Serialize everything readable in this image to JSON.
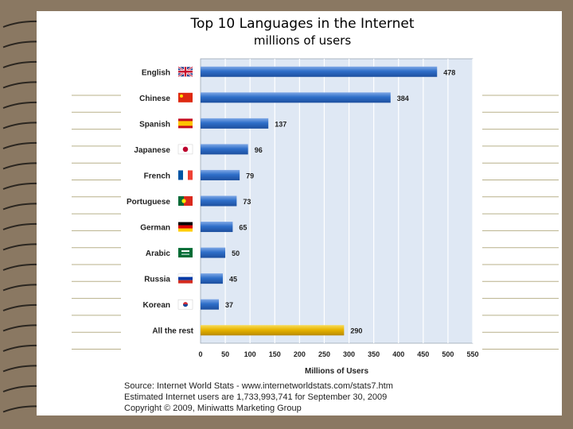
{
  "title": "Top 10 Languages in the Internet",
  "subtitle": "millions of users",
  "footer": {
    "source": "Source: Internet World Stats - www.internetworldstats.com/stats7.htm",
    "estimate": "Estimated Internet users are 1,733,993,741 for September 30, 2009",
    "copyright": "Copyright © 2009, Miniwatts Marketing Group"
  },
  "chart_data": {
    "type": "bar",
    "orientation": "horizontal",
    "categories": [
      "English",
      "Chinese",
      "Spanish",
      "Japanese",
      "French",
      "Portuguese",
      "German",
      "Arabic",
      "Russia",
      "Korean",
      "All the rest"
    ],
    "values": [
      478,
      384,
      137,
      96,
      79,
      73,
      65,
      50,
      45,
      37,
      290
    ],
    "flags": [
      "uk-flag-icon",
      "china-flag-icon",
      "spain-flag-icon",
      "japan-flag-icon",
      "france-flag-icon",
      "portugal-flag-icon",
      "germany-flag-icon",
      "saudi-flag-icon",
      "russia-flag-icon",
      "korea-flag-icon",
      ""
    ],
    "xlabel": "Millions of Users",
    "xlim": [
      0,
      550
    ],
    "xticks": [
      0,
      50,
      100,
      150,
      200,
      250,
      300,
      350,
      400,
      450,
      500,
      550
    ],
    "grid": true,
    "colors": {
      "bar": "#2f6fc9",
      "highlight": "#e8b400",
      "plot_bg": "#dfe8f4",
      "grid": "#ffffff"
    }
  }
}
